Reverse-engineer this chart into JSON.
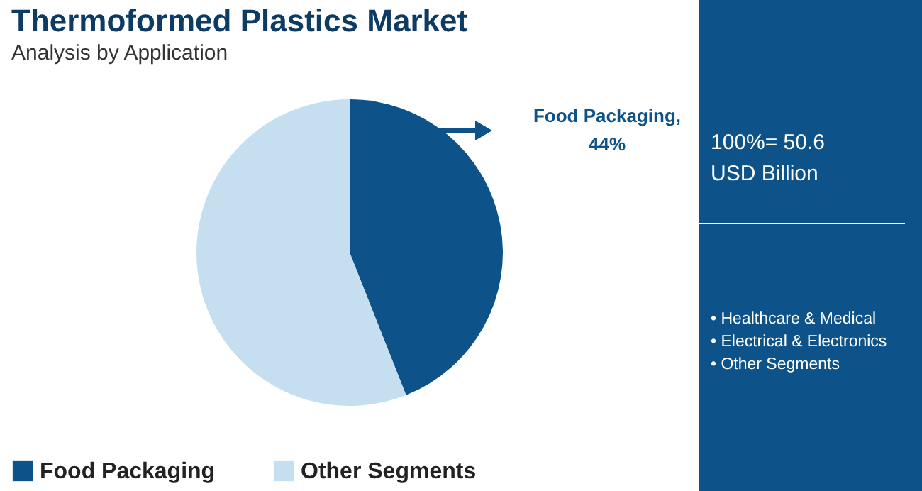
{
  "chart_data": {
    "type": "pie",
    "title": "Thermoformed Plastics Market",
    "subtitle": "Analysis by Application",
    "categories": [
      "Food Packaging",
      "Other Segments"
    ],
    "values": [
      44,
      56
    ],
    "colors": [
      "#0d5389",
      "#c5dff0"
    ],
    "legend": "bottom",
    "annotations": [
      "Food Packaging, 44%",
      "100%= 50.6 USD Billion",
      "• Healthcare & Medical",
      "• Electrical & Electronics",
      "• Other Segments"
    ]
  }
}
